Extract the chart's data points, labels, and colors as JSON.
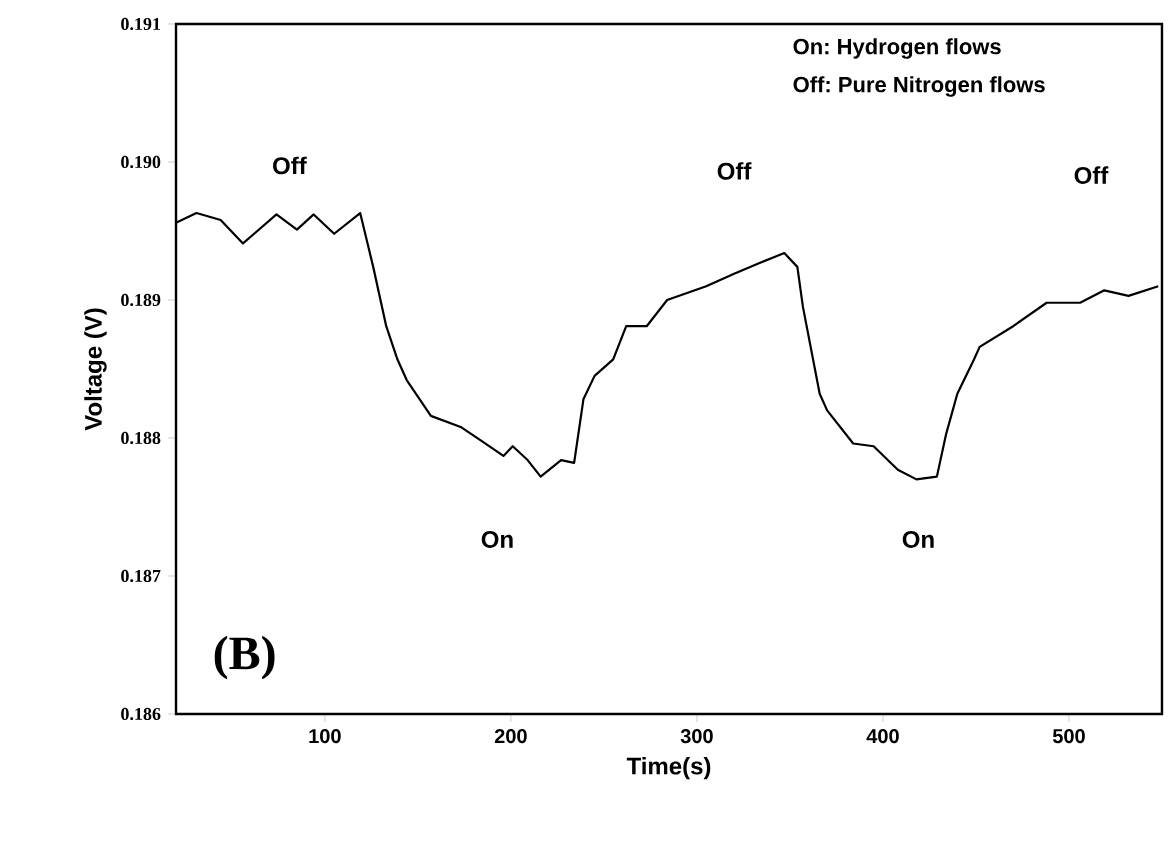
{
  "chart_data": {
    "type": "line",
    "title": "(B)",
    "xlabel": "Time(s)",
    "ylabel": "Voltage (V)",
    "x": [
      20,
      31,
      44,
      56,
      74,
      85,
      94,
      105,
      119,
      126,
      133,
      139,
      144,
      157,
      173,
      183,
      196,
      201,
      209,
      216,
      227,
      234,
      239,
      245,
      255,
      262,
      273,
      284,
      305,
      320,
      334,
      347,
      354,
      357,
      366,
      370,
      384,
      395,
      408,
      418,
      429,
      434,
      440,
      449,
      452,
      470,
      488,
      506,
      519,
      532,
      548
    ],
    "series": [
      {
        "color": "#000000",
        "values": [
          0.18956,
          0.18963,
          0.18958,
          0.18941,
          0.18962,
          0.18951,
          0.18962,
          0.18948,
          0.18963,
          0.18924,
          0.18881,
          0.18857,
          0.18842,
          0.18816,
          0.18808,
          0.18799,
          0.18787,
          0.18794,
          0.18784,
          0.18772,
          0.18784,
          0.18782,
          0.18828,
          0.18845,
          0.18857,
          0.18881,
          0.18881,
          0.189,
          0.1891,
          0.18919,
          0.18927,
          0.18934,
          0.18924,
          0.18895,
          0.18832,
          0.1882,
          0.18796,
          0.18794,
          0.18777,
          0.1877,
          0.18772,
          0.18803,
          0.18832,
          0.18857,
          0.18866,
          0.18881,
          0.18898,
          0.18898,
          0.18907,
          0.18903,
          0.1891
        ]
      }
    ],
    "xlim": [
      20,
      550
    ],
    "ylim": [
      0.186,
      0.191
    ],
    "xticks": [
      100,
      200,
      300,
      400,
      500
    ],
    "yticks": [
      {
        "value": 0.186,
        "label": "0.186"
      },
      {
        "value": 0.187,
        "label": "0.187"
      },
      {
        "value": 0.188,
        "label": "0.188"
      },
      {
        "value": 0.189,
        "label": "0.189"
      },
      {
        "value": 0.19,
        "label": "0.190"
      },
      {
        "value": 0.191,
        "label": "0.191"
      }
    ],
    "annotations": [
      "On: Hydrogen flows",
      "Off: Pure Nitrogen flows",
      "Off",
      "Off",
      "Off",
      "On",
      "On"
    ],
    "grid": false,
    "marker": "none",
    "line_style": "solid"
  }
}
